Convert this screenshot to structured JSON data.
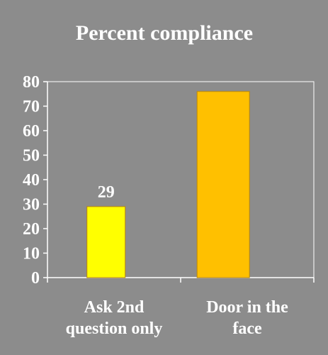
{
  "chart_data": {
    "type": "bar",
    "title": "Percent compliance",
    "categories": [
      "Ask 2nd question only",
      "Door in the face"
    ],
    "category_lines": [
      [
        "Ask 2nd",
        "question only"
      ],
      [
        "Door in the",
        "face"
      ]
    ],
    "values": [
      29,
      76
    ],
    "data_labels": [
      "29",
      ""
    ],
    "bar_colors": [
      "#ffff00",
      "#ffc000"
    ],
    "ylim": [
      0,
      80
    ],
    "yticks": [
      0,
      10,
      20,
      30,
      40,
      50,
      60,
      70,
      80
    ],
    "grid": false,
    "legend": "none",
    "xlabel": "",
    "ylabel": ""
  },
  "colors": {
    "background": "#8c8c8c",
    "axis": "#ffffff",
    "bar_outline": "#b8860b"
  }
}
